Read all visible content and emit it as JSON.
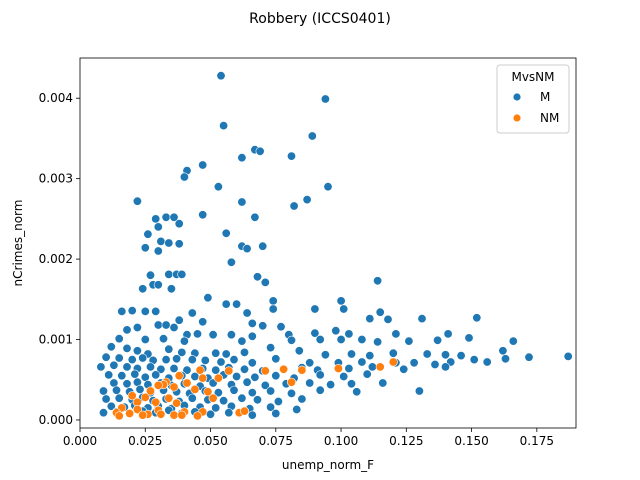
{
  "chart_data": {
    "type": "scatter",
    "title": "Robbery (ICCS0401)",
    "xlabel": "unemp_norm_F",
    "ylabel": "nCrimes_norm",
    "xlim": [
      0.0,
      0.19
    ],
    "ylim": [
      -0.0001,
      0.0045
    ],
    "xticks": [
      "0.000",
      "0.025",
      "0.050",
      "0.075",
      "0.100",
      "0.125",
      "0.150",
      "0.175"
    ],
    "yticks": [
      "0.000",
      "0.001",
      "0.002",
      "0.003",
      "0.004"
    ],
    "grid": false,
    "legend": {
      "title": "MvsNM",
      "placement": "top-right"
    },
    "colors": {
      "M": "#1f77b4",
      "NM": "#ff7f0e"
    },
    "series": [
      {
        "name": "M",
        "color": "#1f77b4",
        "points": [
          [
            0.054,
            0.00428
          ],
          [
            0.094,
            0.00399
          ],
          [
            0.055,
            0.00366
          ],
          [
            0.089,
            0.00353
          ],
          [
            0.067,
            0.00336
          ],
          [
            0.069,
            0.00334
          ],
          [
            0.062,
            0.00326
          ],
          [
            0.081,
            0.00328
          ],
          [
            0.047,
            0.00317
          ],
          [
            0.041,
            0.0031
          ],
          [
            0.04,
            0.00302
          ],
          [
            0.053,
            0.0029
          ],
          [
            0.095,
            0.0029
          ],
          [
            0.087,
            0.00274
          ],
          [
            0.022,
            0.00272
          ],
          [
            0.062,
            0.00271
          ],
          [
            0.082,
            0.00266
          ],
          [
            0.047,
            0.00255
          ],
          [
            0.067,
            0.00252
          ],
          [
            0.033,
            0.00252
          ],
          [
            0.029,
            0.0025
          ],
          [
            0.036,
            0.00252
          ],
          [
            0.038,
            0.00244
          ],
          [
            0.03,
            0.0024
          ],
          [
            0.056,
            0.00232
          ],
          [
            0.026,
            0.00231
          ],
          [
            0.031,
            0.00222
          ],
          [
            0.034,
            0.0022
          ],
          [
            0.038,
            0.00219
          ],
          [
            0.062,
            0.00216
          ],
          [
            0.07,
            0.00216
          ],
          [
            0.025,
            0.00214
          ],
          [
            0.064,
            0.00213
          ],
          [
            0.03,
            0.0021
          ],
          [
            0.058,
            0.00196
          ],
          [
            0.034,
            0.00181
          ],
          [
            0.037,
            0.00181
          ],
          [
            0.039,
            0.00181
          ],
          [
            0.068,
            0.00178
          ],
          [
            0.027,
            0.0018
          ],
          [
            0.114,
            0.00173
          ],
          [
            0.071,
            0.00171
          ],
          [
            0.028,
            0.00168
          ],
          [
            0.03,
            0.00168
          ],
          [
            0.024,
            0.00163
          ],
          [
            0.035,
            0.00163
          ],
          [
            0.1,
            0.00148
          ],
          [
            0.074,
            0.00148
          ],
          [
            0.049,
            0.00152
          ],
          [
            0.056,
            0.00144
          ],
          [
            0.06,
            0.00144
          ],
          [
            0.016,
            0.00135
          ],
          [
            0.02,
            0.00136
          ],
          [
            0.025,
            0.00135
          ],
          [
            0.029,
            0.00135
          ],
          [
            0.043,
            0.00133
          ],
          [
            0.064,
            0.00133
          ],
          [
            0.074,
            0.00138
          ],
          [
            0.09,
            0.00138
          ],
          [
            0.101,
            0.00138
          ],
          [
            0.115,
            0.00134
          ],
          [
            0.131,
            0.00126
          ],
          [
            0.111,
            0.00126
          ],
          [
            0.152,
            0.00127
          ],
          [
            0.118,
            0.00125
          ],
          [
            0.038,
            0.00124
          ],
          [
            0.047,
            0.00122
          ],
          [
            0.066,
            0.0012
          ],
          [
            0.07,
            0.00117
          ],
          [
            0.077,
            0.00116
          ],
          [
            0.09,
            0.00108
          ],
          [
            0.098,
            0.00111
          ],
          [
            0.018,
            0.00112
          ],
          [
            0.022,
            0.00115
          ],
          [
            0.03,
            0.00118
          ],
          [
            0.033,
            0.00118
          ],
          [
            0.036,
            0.00115
          ],
          [
            0.041,
            0.00106
          ],
          [
            0.045,
            0.00107
          ],
          [
            0.051,
            0.00106
          ],
          [
            0.058,
            0.00106
          ],
          [
            0.066,
            0.00104
          ],
          [
            0.08,
            0.00106
          ],
          [
            0.103,
            0.00107
          ],
          [
            0.121,
            0.00107
          ],
          [
            0.141,
            0.00107
          ],
          [
            0.015,
            0.00101
          ],
          [
            0.025,
            0.001
          ],
          [
            0.032,
            0.00101
          ],
          [
            0.04,
            0.00098
          ],
          [
            0.062,
            0.00098
          ],
          [
            0.081,
            0.00099
          ],
          [
            0.092,
            0.001
          ],
          [
            0.1,
            0.001
          ],
          [
            0.108,
            0.001
          ],
          [
            0.114,
            0.00097
          ],
          [
            0.126,
            0.00098
          ],
          [
            0.137,
            0.00099
          ],
          [
            0.149,
            0.00102
          ],
          [
            0.166,
            0.00098
          ],
          [
            0.012,
            0.00091
          ],
          [
            0.018,
            0.00089
          ],
          [
            0.022,
            0.00086
          ],
          [
            0.026,
            0.00082
          ],
          [
            0.034,
            0.00088
          ],
          [
            0.039,
            0.00084
          ],
          [
            0.044,
            0.00083
          ],
          [
            0.052,
            0.00083
          ],
          [
            0.056,
            0.00082
          ],
          [
            0.063,
            0.00084
          ],
          [
            0.073,
            0.0009
          ],
          [
            0.084,
            0.00086
          ],
          [
            0.094,
            0.00081
          ],
          [
            0.104,
            0.00082
          ],
          [
            0.111,
            0.0008
          ],
          [
            0.12,
            0.00083
          ],
          [
            0.133,
            0.00082
          ],
          [
            0.14,
            0.00081
          ],
          [
            0.146,
            0.0008
          ],
          [
            0.162,
            0.00086
          ],
          [
            0.172,
            0.00078
          ],
          [
            0.187,
            0.00079
          ],
          [
            0.01,
            0.00078
          ],
          [
            0.015,
            0.00077
          ],
          [
            0.02,
            0.00075
          ],
          [
            0.024,
            0.00077
          ],
          [
            0.028,
            0.00074
          ],
          [
            0.033,
            0.00075
          ],
          [
            0.037,
            0.00076
          ],
          [
            0.043,
            0.00075
          ],
          [
            0.048,
            0.00074
          ],
          [
            0.054,
            0.00072
          ],
          [
            0.059,
            0.00075
          ],
          [
            0.066,
            0.00071
          ],
          [
            0.075,
            0.00076
          ],
          [
            0.088,
            0.00071
          ],
          [
            0.099,
            0.00071
          ],
          [
            0.108,
            0.00072
          ],
          [
            0.121,
            0.00071
          ],
          [
            0.128,
            0.00071
          ],
          [
            0.136,
            0.00069
          ],
          [
            0.142,
            0.00072
          ],
          [
            0.151,
            0.00075
          ],
          [
            0.156,
            0.00072
          ],
          [
            0.163,
            0.00076
          ],
          [
            0.008,
            0.00066
          ],
          [
            0.013,
            0.00068
          ],
          [
            0.018,
            0.00066
          ],
          [
            0.022,
            0.00064
          ],
          [
            0.027,
            0.00066
          ],
          [
            0.031,
            0.00063
          ],
          [
            0.036,
            0.00064
          ],
          [
            0.041,
            0.00062
          ],
          [
            0.047,
            0.00064
          ],
          [
            0.052,
            0.00062
          ],
          [
            0.057,
            0.00065
          ],
          [
            0.063,
            0.00063
          ],
          [
            0.07,
            0.00061
          ],
          [
            0.078,
            0.00063
          ],
          [
            0.085,
            0.00065
          ],
          [
            0.091,
            0.00062
          ],
          [
            0.103,
            0.00064
          ],
          [
            0.112,
            0.00066
          ],
          [
            0.124,
            0.00063
          ],
          [
            0.14,
            0.00066
          ],
          [
            0.011,
            0.00056
          ],
          [
            0.016,
            0.00055
          ],
          [
            0.021,
            0.00057
          ],
          [
            0.025,
            0.00053
          ],
          [
            0.029,
            0.00056
          ],
          [
            0.034,
            0.00052
          ],
          [
            0.039,
            0.00055
          ],
          [
            0.044,
            0.00054
          ],
          [
            0.049,
            0.00052
          ],
          [
            0.055,
            0.00056
          ],
          [
            0.06,
            0.00054
          ],
          [
            0.067,
            0.00053
          ],
          [
            0.075,
            0.00055
          ],
          [
            0.082,
            0.00052
          ],
          [
            0.092,
            0.00056
          ],
          [
            0.101,
            0.00054
          ],
          [
            0.11,
            0.00057
          ],
          [
            0.013,
            0.00046
          ],
          [
            0.018,
            0.00045
          ],
          [
            0.022,
            0.00047
          ],
          [
            0.026,
            0.00044
          ],
          [
            0.031,
            0.00046
          ],
          [
            0.035,
            0.00043
          ],
          [
            0.04,
            0.00045
          ],
          [
            0.046,
            0.00042
          ],
          [
            0.051,
            0.00046
          ],
          [
            0.058,
            0.00044
          ],
          [
            0.064,
            0.00047
          ],
          [
            0.071,
            0.00043
          ],
          [
            0.079,
            0.00045
          ],
          [
            0.088,
            0.00046
          ],
          [
            0.096,
            0.00044
          ],
          [
            0.104,
            0.00045
          ],
          [
            0.116,
            0.00046
          ],
          [
            0.009,
            0.00036
          ],
          [
            0.014,
            0.00037
          ],
          [
            0.019,
            0.00035
          ],
          [
            0.023,
            0.00038
          ],
          [
            0.027,
            0.00034
          ],
          [
            0.032,
            0.00037
          ],
          [
            0.037,
            0.00035
          ],
          [
            0.042,
            0.00033
          ],
          [
            0.048,
            0.00036
          ],
          [
            0.053,
            0.00034
          ],
          [
            0.059,
            0.00037
          ],
          [
            0.066,
            0.00034
          ],
          [
            0.073,
            0.00036
          ],
          [
            0.081,
            0.00033
          ],
          [
            0.092,
            0.00037
          ],
          [
            0.106,
            0.00035
          ],
          [
            0.13,
            0.00036
          ],
          [
            0.01,
            0.00026
          ],
          [
            0.015,
            0.00027
          ],
          [
            0.02,
            0.00025
          ],
          [
            0.024,
            0.00028
          ],
          [
            0.028,
            0.00024
          ],
          [
            0.033,
            0.00026
          ],
          [
            0.038,
            0.00023
          ],
          [
            0.043,
            0.00027
          ],
          [
            0.049,
            0.00025
          ],
          [
            0.055,
            0.00024
          ],
          [
            0.062,
            0.00027
          ],
          [
            0.068,
            0.00025
          ],
          [
            0.076,
            0.00023
          ],
          [
            0.085,
            0.00026
          ],
          [
            0.012,
            0.00017
          ],
          [
            0.017,
            0.00016
          ],
          [
            0.021,
            0.00018
          ],
          [
            0.026,
            0.00015
          ],
          [
            0.03,
            0.00017
          ],
          [
            0.035,
            0.00014
          ],
          [
            0.04,
            0.00018
          ],
          [
            0.046,
            0.00016
          ],
          [
            0.052,
            0.00015
          ],
          [
            0.058,
            0.00017
          ],
          [
            0.065,
            0.00014
          ],
          [
            0.073,
            0.00016
          ],
          [
            0.083,
            0.00013
          ],
          [
            0.009,
            9e-05
          ],
          [
            0.014,
            0.0001
          ],
          [
            0.019,
            8e-05
          ],
          [
            0.024,
            0.00011
          ],
          [
            0.029,
            9e-05
          ],
          [
            0.034,
            0.00012
          ],
          [
            0.039,
            8e-05
          ],
          [
            0.044,
            0.0001
          ],
          [
            0.05,
            7e-05
          ],
          [
            0.057,
            9e-05
          ],
          [
            0.066,
            6e-05
          ],
          [
            0.075,
            8e-05
          ]
        ]
      },
      {
        "name": "NM",
        "color": "#ff7f0e",
        "points": [
          [
            0.046,
            0.00062
          ],
          [
            0.057,
            0.00061
          ],
          [
            0.071,
            0.00061
          ],
          [
            0.078,
            0.00063
          ],
          [
            0.085,
            0.00062
          ],
          [
            0.099,
            0.00064
          ],
          [
            0.115,
            0.00066
          ],
          [
            0.12,
            0.00072
          ],
          [
            0.038,
            0.00055
          ],
          [
            0.047,
            0.00052
          ],
          [
            0.053,
            0.00052
          ],
          [
            0.081,
            0.00047
          ],
          [
            0.033,
            0.00047
          ],
          [
            0.041,
            0.00046
          ],
          [
            0.032,
            0.00044
          ],
          [
            0.036,
            0.00041
          ],
          [
            0.03,
            0.00043
          ],
          [
            0.027,
            0.00036
          ],
          [
            0.044,
            0.00038
          ],
          [
            0.049,
            0.00035
          ],
          [
            0.02,
            0.0003
          ],
          [
            0.025,
            0.00028
          ],
          [
            0.034,
            0.00027
          ],
          [
            0.051,
            0.00027
          ],
          [
            0.022,
            0.00022
          ],
          [
            0.029,
            0.00022
          ],
          [
            0.037,
            0.00021
          ],
          [
            0.016,
            0.00015
          ],
          [
            0.022,
            0.00013
          ],
          [
            0.03,
            0.00012
          ],
          [
            0.04,
            0.0001
          ],
          [
            0.047,
            0.0001
          ],
          [
            0.014,
            9e-05
          ],
          [
            0.019,
            8e-05
          ],
          [
            0.026,
            7e-05
          ],
          [
            0.031,
            7e-05
          ],
          [
            0.036,
            6e-05
          ],
          [
            0.045,
            5e-05
          ],
          [
            0.061,
            9e-05
          ],
          [
            0.063,
            0.00011
          ],
          [
            0.015,
            5e-05
          ],
          [
            0.024,
            6e-05
          ],
          [
            0.039,
            6e-05
          ]
        ]
      }
    ]
  }
}
